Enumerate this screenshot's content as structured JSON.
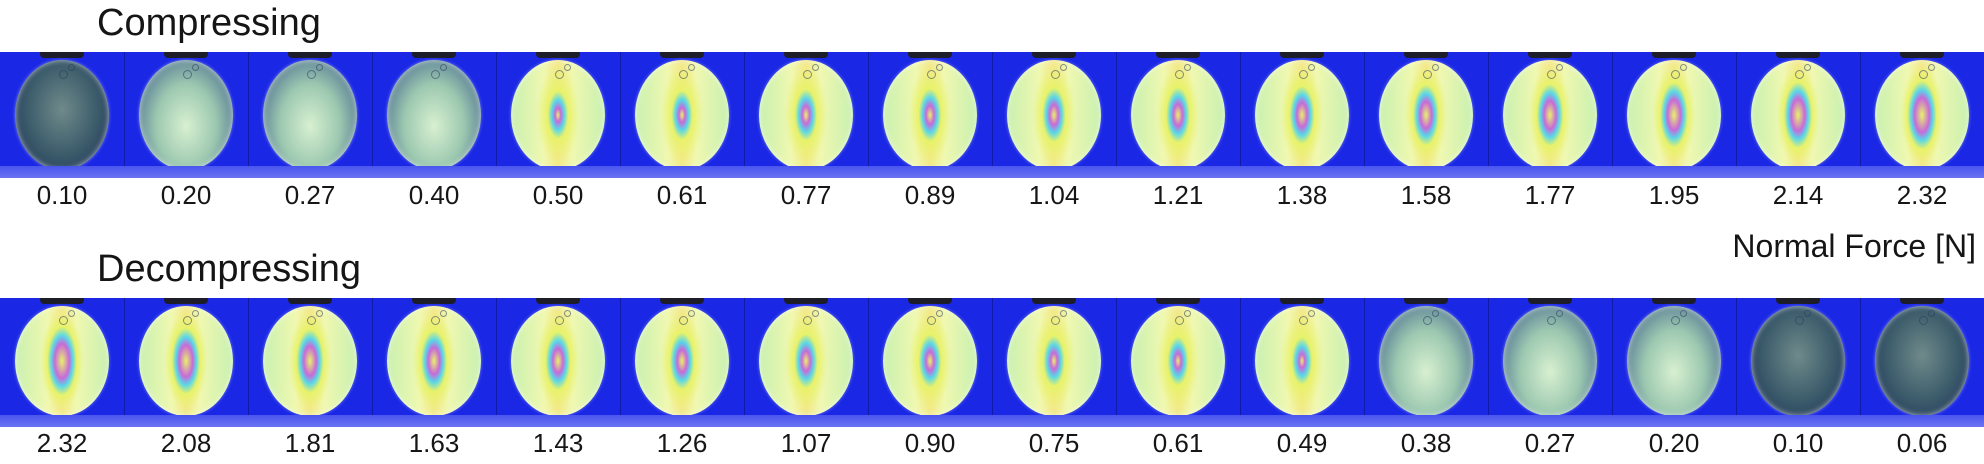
{
  "compressing": {
    "title": "Compressing",
    "values": [
      "0.10",
      "0.20",
      "0.27",
      "0.40",
      "0.50",
      "0.61",
      "0.77",
      "0.89",
      "1.04",
      "1.21",
      "1.38",
      "1.58",
      "1.77",
      "1.95",
      "2.14",
      "2.32"
    ]
  },
  "decompressing": {
    "title": "Decompressing",
    "values": [
      "2.32",
      "2.08",
      "1.81",
      "1.63",
      "1.43",
      "1.26",
      "1.07",
      "0.90",
      "0.75",
      "0.61",
      "0.49",
      "0.38",
      "0.27",
      "0.20",
      "0.10",
      "0.06"
    ]
  },
  "axis_label": "Normal Force [N]",
  "colors": {
    "background_blue": "#1a28e6",
    "fringe_yellow": "#e8f26a",
    "fringe_magenta": "#c86ad8",
    "fringe_cyan": "#58d6e8",
    "fringe_green": "#c8f0b0"
  }
}
